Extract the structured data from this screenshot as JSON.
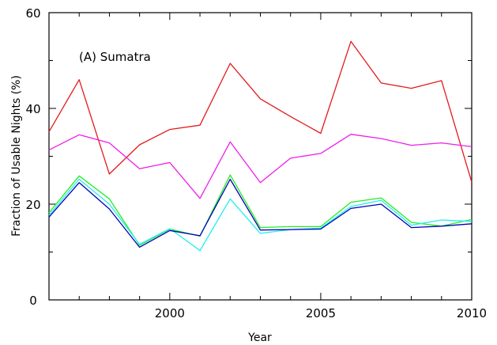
{
  "chart_data": {
    "type": "line",
    "title": "",
    "xlabel": "Year",
    "ylabel": "Fraction of Usable Nights (%)",
    "annotation": "(A) Sumatra",
    "xlim": [
      1996,
      2010
    ],
    "ylim": [
      0,
      60
    ],
    "x_ticks": [
      2000,
      2005,
      2010
    ],
    "y_ticks": [
      0,
      20,
      40,
      60
    ],
    "grid": false,
    "legend": "none",
    "x": [
      1996,
      1997,
      1998,
      1999,
      2000,
      2001,
      2002,
      2003,
      2004,
      2005,
      2006,
      2007,
      2008,
      2009,
      2010
    ],
    "series": [
      {
        "color": "#e41a1c",
        "values": [
          35.1,
          46.0,
          26.3,
          32.4,
          35.6,
          36.5,
          49.4,
          42.0,
          38.3,
          34.8,
          54.0,
          45.3,
          44.2,
          45.8,
          24.6
        ]
      },
      {
        "color": "#ee1ee8",
        "values": [
          31.3,
          34.5,
          32.8,
          27.4,
          28.7,
          21.2,
          33.0,
          24.5,
          29.6,
          30.6,
          34.6,
          33.7,
          32.3,
          32.8,
          32.0
        ]
      },
      {
        "color": "#22ee22",
        "values": [
          18.2,
          25.9,
          21.1,
          11.4,
          14.8,
          13.3,
          26.1,
          15.1,
          15.3,
          15.3,
          20.4,
          21.3,
          16.2,
          15.4,
          16.8
        ]
      },
      {
        "color": "#22eeee",
        "values": [
          17.7,
          25.2,
          20.0,
          11.6,
          14.9,
          10.3,
          21.1,
          13.9,
          14.7,
          15.0,
          19.5,
          20.8,
          15.6,
          16.7,
          16.4
        ]
      },
      {
        "color": "#0000bb",
        "values": [
          17.3,
          24.5,
          19.0,
          11.0,
          14.5,
          13.4,
          25.2,
          14.6,
          14.7,
          14.8,
          19.1,
          20.0,
          15.1,
          15.4,
          15.9
        ]
      }
    ]
  }
}
